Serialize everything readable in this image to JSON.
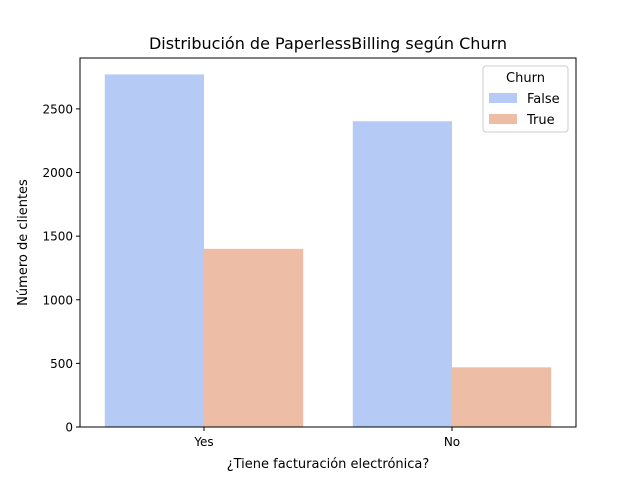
{
  "chart_data": {
    "type": "bar",
    "title": "Distribución de PaperlessBilling según Churn",
    "xlabel": "¿Tiene facturación electrónica?",
    "ylabel": "Número de clientes",
    "categories": [
      "Yes",
      "No"
    ],
    "series": [
      {
        "name": "False",
        "color": "#b5cbf5",
        "values": [
          2771,
          2403
        ]
      },
      {
        "name": "True",
        "color": "#edbda6",
        "values": [
          1400,
          469
        ]
      }
    ],
    "ylim": [
      0,
      2900
    ],
    "yticks": [
      0,
      500,
      1000,
      1500,
      2000,
      2500
    ],
    "grid": false,
    "legend": {
      "title": "Churn",
      "position": "top-right"
    }
  }
}
